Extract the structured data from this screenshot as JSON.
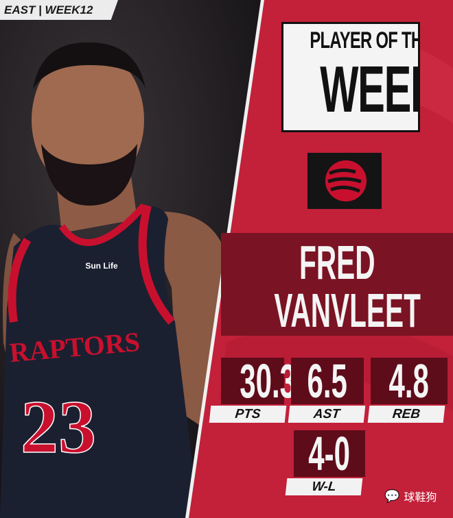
{
  "tag": "EAST | WEEK12",
  "title": {
    "line1": "PLAYER OF THE",
    "line2": "WEEK"
  },
  "team_logo": "raptors-basketball-claw-logo",
  "player": {
    "first": "FRED",
    "last": "VANVLEET"
  },
  "jersey": {
    "wordmark": "RAPTORS",
    "number": "23",
    "sponsor": "Sun Life"
  },
  "stats": [
    {
      "value": "30.3",
      "label": "PTS"
    },
    {
      "value": "6.5",
      "label": "AST"
    },
    {
      "value": "4.8",
      "label": "REB"
    }
  ],
  "record": {
    "value": "4-0",
    "label": "W-L"
  },
  "watermark": "球鞋狗",
  "colors": {
    "panel_red": "#c3203a",
    "dark_red": "#5e0c1a",
    "jersey_navy": "#1b2030",
    "trim_red": "#c8102e"
  }
}
